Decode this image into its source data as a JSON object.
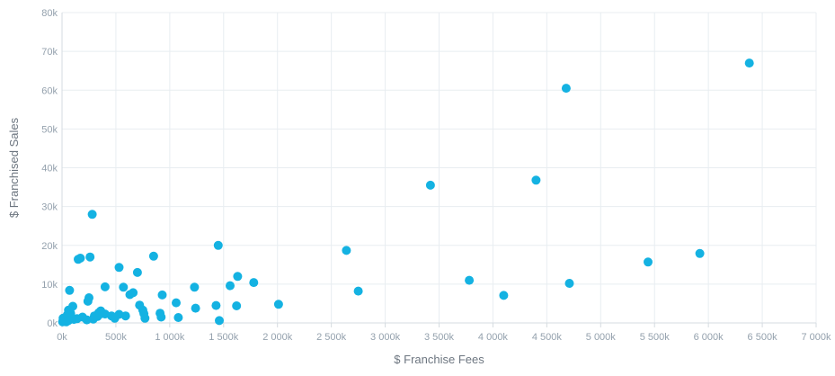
{
  "chart_data": {
    "type": "scatter",
    "title": "",
    "xlabel": "$ Franchise Fees",
    "ylabel": "$ Franchised Sales",
    "xlim": [
      0,
      7000000
    ],
    "ylim": [
      0,
      80000
    ],
    "x_ticks": [
      0,
      500000,
      1000000,
      1500000,
      2000000,
      2500000,
      3000000,
      3500000,
      4000000,
      4500000,
      5000000,
      5500000,
      6000000,
      6500000,
      7000000
    ],
    "x_tick_labels": [
      "0k",
      "500k",
      "1 000k",
      "1 500k",
      "2 000k",
      "2 500k",
      "3 000k",
      "3 500k",
      "4 000k",
      "4 500k",
      "5 000k",
      "5 500k",
      "6 000k",
      "6 500k",
      "7 000k"
    ],
    "y_ticks": [
      0,
      10000,
      20000,
      30000,
      40000,
      50000,
      60000,
      70000,
      80000
    ],
    "y_tick_labels": [
      "0k",
      "10k",
      "20k",
      "30k",
      "40k",
      "50k",
      "60k",
      "70k",
      "80k"
    ],
    "grid": true,
    "marker_color": "#14b2e2",
    "points": [
      [
        6380000,
        67000
      ],
      [
        4680000,
        60500
      ],
      [
        4400000,
        36800
      ],
      [
        3420000,
        35500
      ],
      [
        5920000,
        17900
      ],
      [
        5440000,
        15700
      ],
      [
        3780000,
        11000
      ],
      [
        4710000,
        10200
      ],
      [
        4100000,
        7100
      ],
      [
        2640000,
        18700
      ],
      [
        2750000,
        8200
      ],
      [
        2010000,
        4800
      ],
      [
        1450000,
        20000
      ],
      [
        1780000,
        10400
      ],
      [
        1630000,
        12000
      ],
      [
        1560000,
        9600
      ],
      [
        1430000,
        4500
      ],
      [
        1620000,
        4400
      ],
      [
        1460000,
        600
      ],
      [
        1230000,
        9200
      ],
      [
        1240000,
        3800
      ],
      [
        1060000,
        5200
      ],
      [
        1080000,
        1400
      ],
      [
        930000,
        7200
      ],
      [
        910000,
        2500
      ],
      [
        920000,
        1500
      ],
      [
        850000,
        17200
      ],
      [
        700000,
        13000
      ],
      [
        720000,
        4600
      ],
      [
        750000,
        3300
      ],
      [
        760000,
        2400
      ],
      [
        770000,
        1200
      ],
      [
        660000,
        7800
      ],
      [
        630000,
        7300
      ],
      [
        570000,
        9200
      ],
      [
        590000,
        1800
      ],
      [
        530000,
        14300
      ],
      [
        530000,
        2200
      ],
      [
        490000,
        1200
      ],
      [
        460000,
        1800
      ],
      [
        400000,
        9300
      ],
      [
        400000,
        2300
      ],
      [
        360000,
        3100
      ],
      [
        370000,
        2400
      ],
      [
        340000,
        2600
      ],
      [
        330000,
        1700
      ],
      [
        300000,
        1800
      ],
      [
        290000,
        1000
      ],
      [
        280000,
        28000
      ],
      [
        260000,
        17000
      ],
      [
        250000,
        6500
      ],
      [
        240000,
        5600
      ],
      [
        230000,
        800
      ],
      [
        190000,
        1500
      ],
      [
        170000,
        16700
      ],
      [
        150000,
        16400
      ],
      [
        140000,
        1100
      ],
      [
        110000,
        900
      ],
      [
        90000,
        1400
      ],
      [
        100000,
        4300
      ],
      [
        70000,
        8400
      ],
      [
        80000,
        2500
      ],
      [
        60000,
        3300
      ],
      [
        50000,
        2100
      ],
      [
        40000,
        1500
      ],
      [
        30000,
        900
      ],
      [
        20000,
        400
      ],
      [
        10000,
        1200
      ],
      [
        5000,
        300
      ],
      [
        40000,
        300
      ],
      [
        60000,
        600
      ]
    ]
  }
}
